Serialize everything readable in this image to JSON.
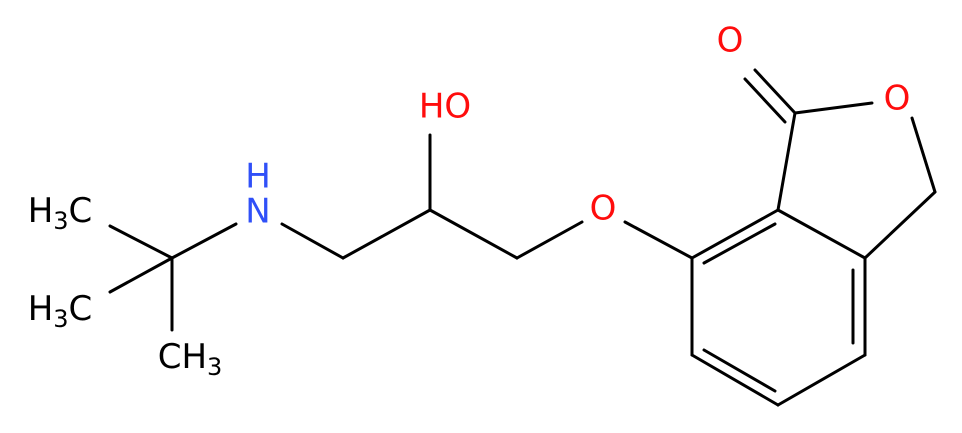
{
  "atoms": [
    {
      "main": "O"
    },
    {
      "main": "O"
    },
    {
      "main": "O"
    },
    {
      "main": "HO"
    },
    {
      "main": "N"
    },
    {
      "main": "H"
    },
    {
      "main": "H",
      "sub": "3",
      "tail": "C"
    },
    {
      "main": "H",
      "sub": "3",
      "tail": "C"
    },
    {
      "main": "CH",
      "sub": "3"
    }
  ]
}
